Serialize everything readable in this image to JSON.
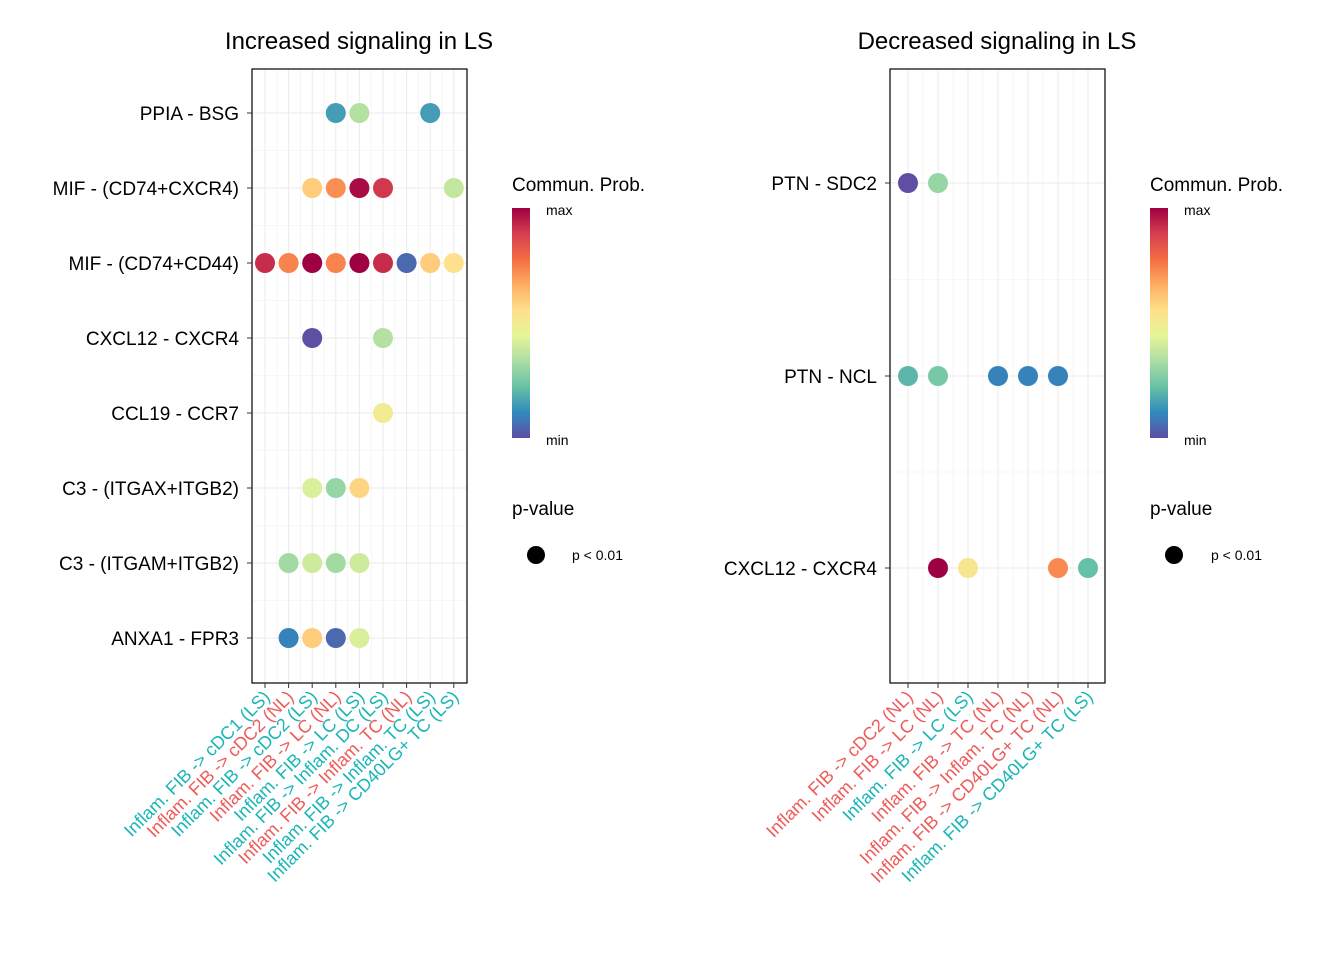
{
  "chart_data": [
    {
      "type": "bubble-dot",
      "title": "Increased signaling in LS",
      "xlabel": "",
      "ylabel": "",
      "categories": [
        {
          "label": "Inflam. FIB -> cDC1 (LS)",
          "group": "LS"
        },
        {
          "label": "Inflam. FIB -> cDC2 (NL)",
          "group": "NL"
        },
        {
          "label": "Inflam. FIB -> cDC2 (LS)",
          "group": "LS"
        },
        {
          "label": "Inflam. FIB -> LC (NL)",
          "group": "NL"
        },
        {
          "label": "Inflam. FIB -> LC (LS)",
          "group": "LS"
        },
        {
          "label": "Inflam. FIB -> Inflam. DC (LS)",
          "group": "LS"
        },
        {
          "label": "Inflam. FIB -> Inflam. TC (NL)",
          "group": "NL"
        },
        {
          "label": "Inflam. FIB -> Inflam. TC (LS)",
          "group": "LS"
        },
        {
          "label": "Inflam. FIB -> CD40LG+ TC (LS)",
          "group": "LS"
        }
      ],
      "pairs": [
        "PPIA - BSG",
        "MIF - (CD74+CXCR4)",
        "MIF - (CD74+CD44)",
        "CXCL12 - CXCR4",
        "CCL19 - CCR7",
        "C3 - (ITGAX+ITGB2)",
        "C3 - (ITGAM+ITGB2)",
        "ANXA1 - FPR3"
      ],
      "points": [
        {
          "x": 3,
          "y": 0,
          "prob": 0.15
        },
        {
          "x": 4,
          "y": 0,
          "prob": 0.35
        },
        {
          "x": 7,
          "y": 0,
          "prob": 0.15
        },
        {
          "x": 2,
          "y": 1,
          "prob": 0.6
        },
        {
          "x": 3,
          "y": 1,
          "prob": 0.72
        },
        {
          "x": 4,
          "y": 1,
          "prob": 0.98
        },
        {
          "x": 5,
          "y": 1,
          "prob": 0.9
        },
        {
          "x": 8,
          "y": 1,
          "prob": 0.38
        },
        {
          "x": 0,
          "y": 2,
          "prob": 0.92
        },
        {
          "x": 1,
          "y": 2,
          "prob": 0.74
        },
        {
          "x": 2,
          "y": 2,
          "prob": 1.0
        },
        {
          "x": 3,
          "y": 2,
          "prob": 0.74
        },
        {
          "x": 4,
          "y": 2,
          "prob": 1.0
        },
        {
          "x": 5,
          "y": 2,
          "prob": 0.92
        },
        {
          "x": 6,
          "y": 2,
          "prob": 0.05
        },
        {
          "x": 7,
          "y": 2,
          "prob": 0.6
        },
        {
          "x": 8,
          "y": 2,
          "prob": 0.55
        },
        {
          "x": 2,
          "y": 3,
          "prob": 0.0
        },
        {
          "x": 5,
          "y": 3,
          "prob": 0.35
        },
        {
          "x": 5,
          "y": 4,
          "prob": 0.5
        },
        {
          "x": 2,
          "y": 5,
          "prob": 0.42
        },
        {
          "x": 3,
          "y": 5,
          "prob": 0.3
        },
        {
          "x": 4,
          "y": 5,
          "prob": 0.58
        },
        {
          "x": 1,
          "y": 6,
          "prob": 0.32
        },
        {
          "x": 2,
          "y": 6,
          "prob": 0.4
        },
        {
          "x": 3,
          "y": 6,
          "prob": 0.32
        },
        {
          "x": 4,
          "y": 6,
          "prob": 0.4
        },
        {
          "x": 1,
          "y": 7,
          "prob": 0.1
        },
        {
          "x": 2,
          "y": 7,
          "prob": 0.6
        },
        {
          "x": 3,
          "y": 7,
          "prob": 0.05
        },
        {
          "x": 4,
          "y": 7,
          "prob": 0.42
        }
      ],
      "color_legend": {
        "title": "Commun. Prob.",
        "max_label": "max",
        "min_label": "min"
      },
      "size_legend": {
        "title": "p-value",
        "label": "p < 0.01"
      }
    },
    {
      "type": "bubble-dot",
      "title": "Decreased signaling in LS",
      "xlabel": "",
      "ylabel": "",
      "categories": [
        {
          "label": "Inflam. FIB -> cDC2 (NL)",
          "group": "NL"
        },
        {
          "label": "Inflam. FIB -> LC (NL)",
          "group": "NL"
        },
        {
          "label": "Inflam. FIB -> LC (LS)",
          "group": "LS"
        },
        {
          "label": "Inflam. FIB -> TC (NL)",
          "group": "NL"
        },
        {
          "label": "Inflam. FIB -> Inflam. TC (NL)",
          "group": "NL"
        },
        {
          "label": "Inflam. FIB -> CD40LG+ TC (NL)",
          "group": "NL"
        },
        {
          "label": "Inflam. FIB -> CD40LG+ TC (LS)",
          "group": "LS"
        }
      ],
      "pairs": [
        "PTN - SDC2",
        "PTN - NCL",
        "CXCL12 - CXCR4"
      ],
      "points": [
        {
          "x": 0,
          "y": 0,
          "prob": 0.0
        },
        {
          "x": 1,
          "y": 0,
          "prob": 0.3
        },
        {
          "x": 0,
          "y": 1,
          "prob": 0.2
        },
        {
          "x": 1,
          "y": 1,
          "prob": 0.25
        },
        {
          "x": 3,
          "y": 1,
          "prob": 0.1
        },
        {
          "x": 4,
          "y": 1,
          "prob": 0.1
        },
        {
          "x": 5,
          "y": 1,
          "prob": 0.1
        },
        {
          "x": 1,
          "y": 2,
          "prob": 1.0
        },
        {
          "x": 2,
          "y": 2,
          "prob": 0.52
        },
        {
          "x": 5,
          "y": 2,
          "prob": 0.73
        },
        {
          "x": 6,
          "y": 2,
          "prob": 0.22
        }
      ],
      "color_legend": {
        "title": "Commun. Prob.",
        "max_label": "max",
        "min_label": "min"
      },
      "size_legend": {
        "title": "p-value",
        "label": "p < 0.01"
      }
    }
  ],
  "colors": {
    "LS": "#1BB5B5",
    "NL": "#EE5B5B",
    "spectral_from_min_to_max": [
      "#5E4FA2",
      "#3288BD",
      "#66C2A5",
      "#ABDDA4",
      "#E6F598",
      "#FEE08B",
      "#FDAE61",
      "#F46D43",
      "#D53E4F",
      "#9E0142"
    ]
  }
}
